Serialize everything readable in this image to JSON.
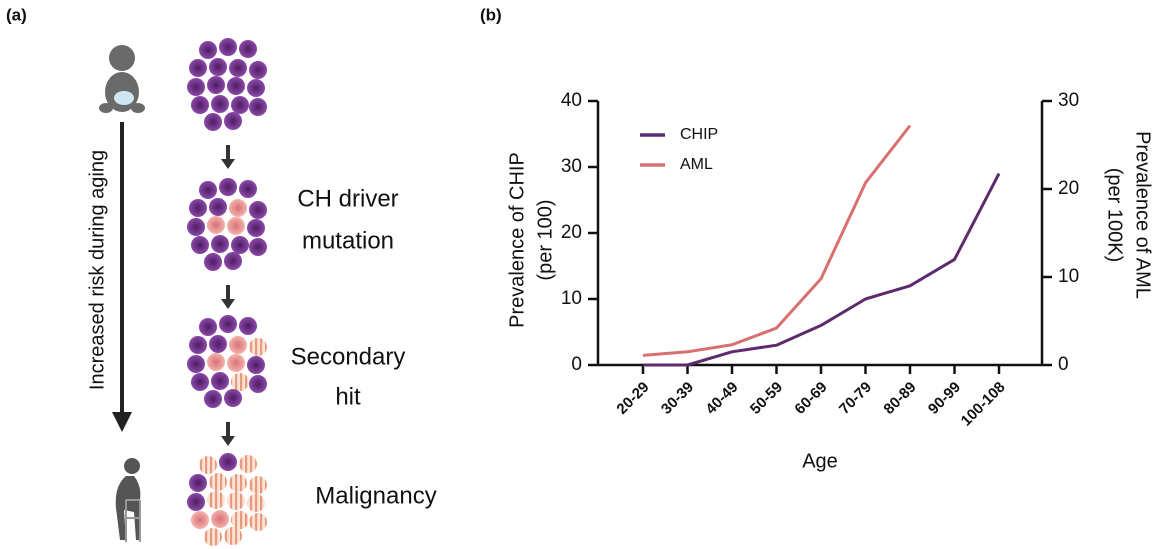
{
  "panel_a": {
    "label": "(a)",
    "arrow_label": "Increased risk during aging",
    "stages": [
      [
        "CH driver",
        "mutation"
      ],
      [
        "Secondary",
        "hit"
      ],
      [
        "Malignancy"
      ]
    ]
  },
  "chart_data": {
    "type": "line",
    "panel_label": "(b)",
    "categories": [
      "20-29",
      "30-39",
      "40-49",
      "50-59",
      "60-69",
      "70-79",
      "80-89",
      "90-99",
      "100-108"
    ],
    "series": [
      {
        "name": "CHIP",
        "color": "#5e2a6e",
        "values": [
          0,
          0,
          2,
          3,
          6,
          10,
          12,
          16,
          29
        ]
      },
      {
        "name": "AML",
        "color": "#d7706f",
        "axis": "y2",
        "values": [
          1.1,
          1.5,
          2.3,
          4.2,
          9.8,
          20.7,
          27.2,
          null,
          null
        ]
      }
    ],
    "xlabel": "Age",
    "ylabel": [
      "Prevalence of CHIP",
      "(per 100)"
    ],
    "y2label": [
      "Prevalence of AML",
      "(per 100K)"
    ],
    "ylim": [
      0,
      40
    ],
    "yticks": [
      0,
      10,
      20,
      30,
      40
    ],
    "y2lim": [
      0,
      30
    ],
    "y2ticks": [
      0,
      10,
      20,
      30
    ],
    "legend": "top-left"
  }
}
